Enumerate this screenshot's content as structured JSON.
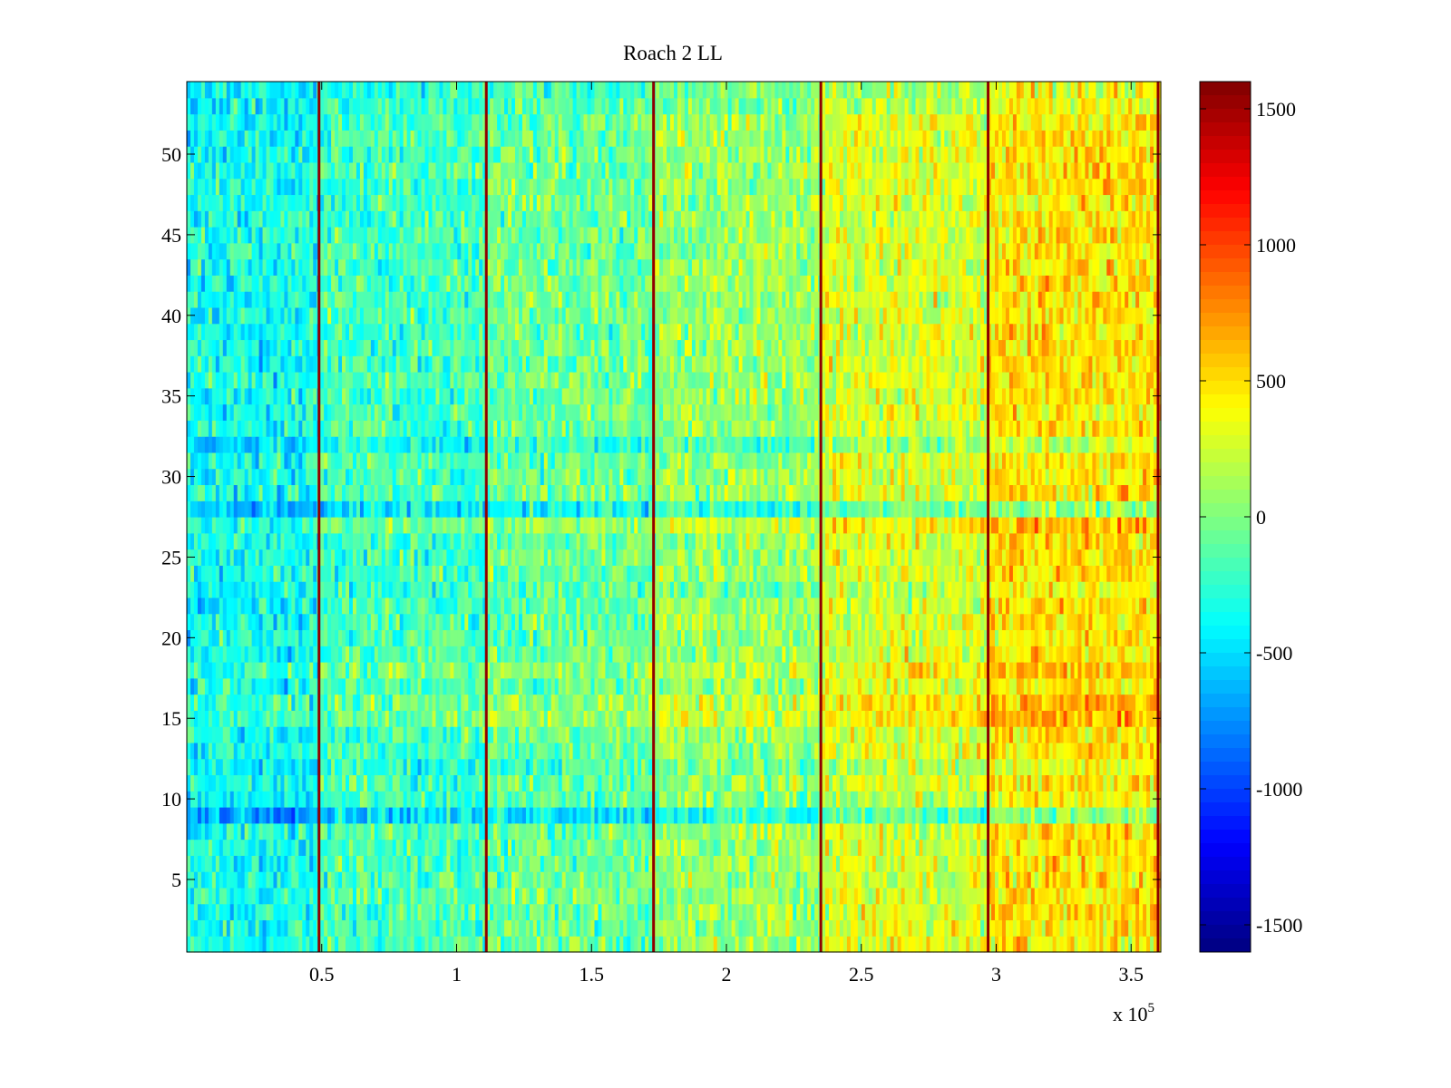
{
  "chart_data": {
    "type": "heatmap",
    "title": "Roach 2 LL",
    "xlabel": "",
    "ylabel": "",
    "x_exponent_label": {
      "base": "x 10",
      "exponent": "5"
    },
    "xlim": [
      0,
      3.61
    ],
    "ylim": [
      0.5,
      54.5
    ],
    "x_ticks": [
      {
        "value": 0.5,
        "label": "0.5"
      },
      {
        "value": 1,
        "label": "1"
      },
      {
        "value": 1.5,
        "label": "1.5"
      },
      {
        "value": 2,
        "label": "2"
      },
      {
        "value": 2.5,
        "label": "2.5"
      },
      {
        "value": 3,
        "label": "3"
      },
      {
        "value": 3.5,
        "label": "3.5"
      }
    ],
    "y_ticks": [
      {
        "value": 5,
        "label": "5"
      },
      {
        "value": 10,
        "label": "10"
      },
      {
        "value": 15,
        "label": "15"
      },
      {
        "value": 20,
        "label": "20"
      },
      {
        "value": 25,
        "label": "25"
      },
      {
        "value": 30,
        "label": "30"
      },
      {
        "value": 35,
        "label": "35"
      },
      {
        "value": 40,
        "label": "40"
      },
      {
        "value": 45,
        "label": "45"
      },
      {
        "value": 50,
        "label": "50"
      }
    ],
    "colorbar": {
      "colormap": "jet",
      "clim": [
        -1600,
        1600
      ],
      "ticks": [
        {
          "value": 1500,
          "label": "1500"
        },
        {
          "value": 1000,
          "label": "1000"
        },
        {
          "value": 500,
          "label": "500"
        },
        {
          "value": 0,
          "label": "0"
        },
        {
          "value": -500,
          "label": "-500"
        },
        {
          "value": -1000,
          "label": "-1000"
        },
        {
          "value": -1500,
          "label": "-1500"
        }
      ]
    },
    "rows": 54,
    "segment_boundaries_x": [
      0.49,
      1.11,
      1.73,
      2.35,
      2.97,
      3.6
    ],
    "segment_means": [
      -350,
      -180,
      -60,
      80,
      280,
      480
    ],
    "boundary_value": 1550,
    "row_offsets": [
      {
        "row": 9,
        "offset": -450
      },
      {
        "row": 10,
        "offset": -120
      },
      {
        "row": 12,
        "offset": -150
      },
      {
        "row": 15,
        "offset": 200
      },
      {
        "row": 16,
        "offset": 160
      },
      {
        "row": 18,
        "offset": 150
      },
      {
        "row": 23,
        "offset": -120
      },
      {
        "row": 27,
        "offset": 180
      },
      {
        "row": 28,
        "offset": -400
      },
      {
        "row": 32,
        "offset": -250
      },
      {
        "row": 54,
        "offset": -150
      },
      {
        "row": 53,
        "offset": -100
      }
    ]
  }
}
